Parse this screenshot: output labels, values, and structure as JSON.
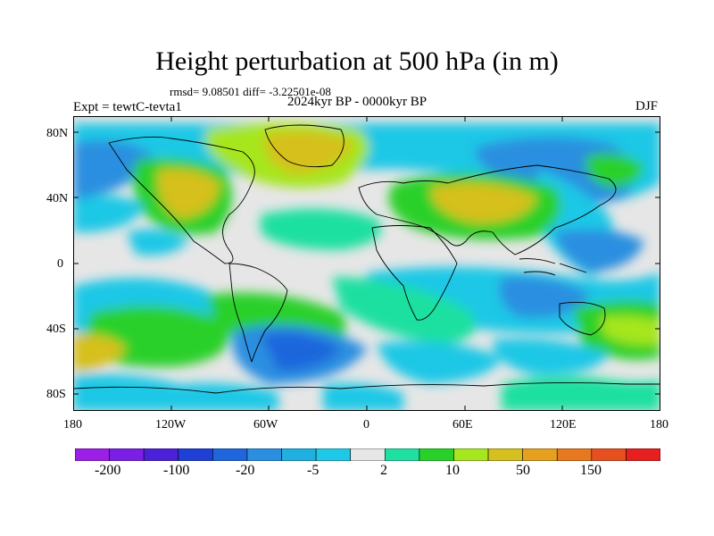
{
  "title": "Height perturbation at 500 hPa (in m)",
  "stats_line": "rmsd= 9.08501 diff= -3.22501e-08",
  "period": "2024kyr BP - 0000kyr BP",
  "experiment": "Expt = tewtC-tevta1",
  "season": "DJF",
  "y_ticks": [
    "80N",
    "40N",
    "0",
    "40S",
    "80S"
  ],
  "x_ticks": [
    "180",
    "120W",
    "60W",
    "0",
    "60E",
    "120E",
    "180"
  ],
  "colorbar": {
    "colors": [
      "#9b1fe6",
      "#7a1fe6",
      "#4a21d8",
      "#1f3fd6",
      "#1f66dc",
      "#2a8fe0",
      "#1fb0e0",
      "#1fc8e6",
      "#e6e6e6",
      "#1fe0a0",
      "#2ad02a",
      "#a6e61f",
      "#d6c01f",
      "#e6a01f",
      "#e6781f",
      "#e6501f",
      "#e61f1f"
    ],
    "labels": [
      "-200",
      "-100",
      "-20",
      "-5",
      "2",
      "10",
      "50",
      "150"
    ]
  },
  "field_colors": {
    "neutral": "#e6e6e6",
    "neg_weak": "#1fc8e6",
    "neg_mid": "#2a8fe0",
    "neg_strong": "#1f66dc",
    "pos_weak": "#1fe0a0",
    "pos_mid": "#2ad02a",
    "pos_yellow": "#a6e61f",
    "pos_strong": "#d6c01f"
  }
}
